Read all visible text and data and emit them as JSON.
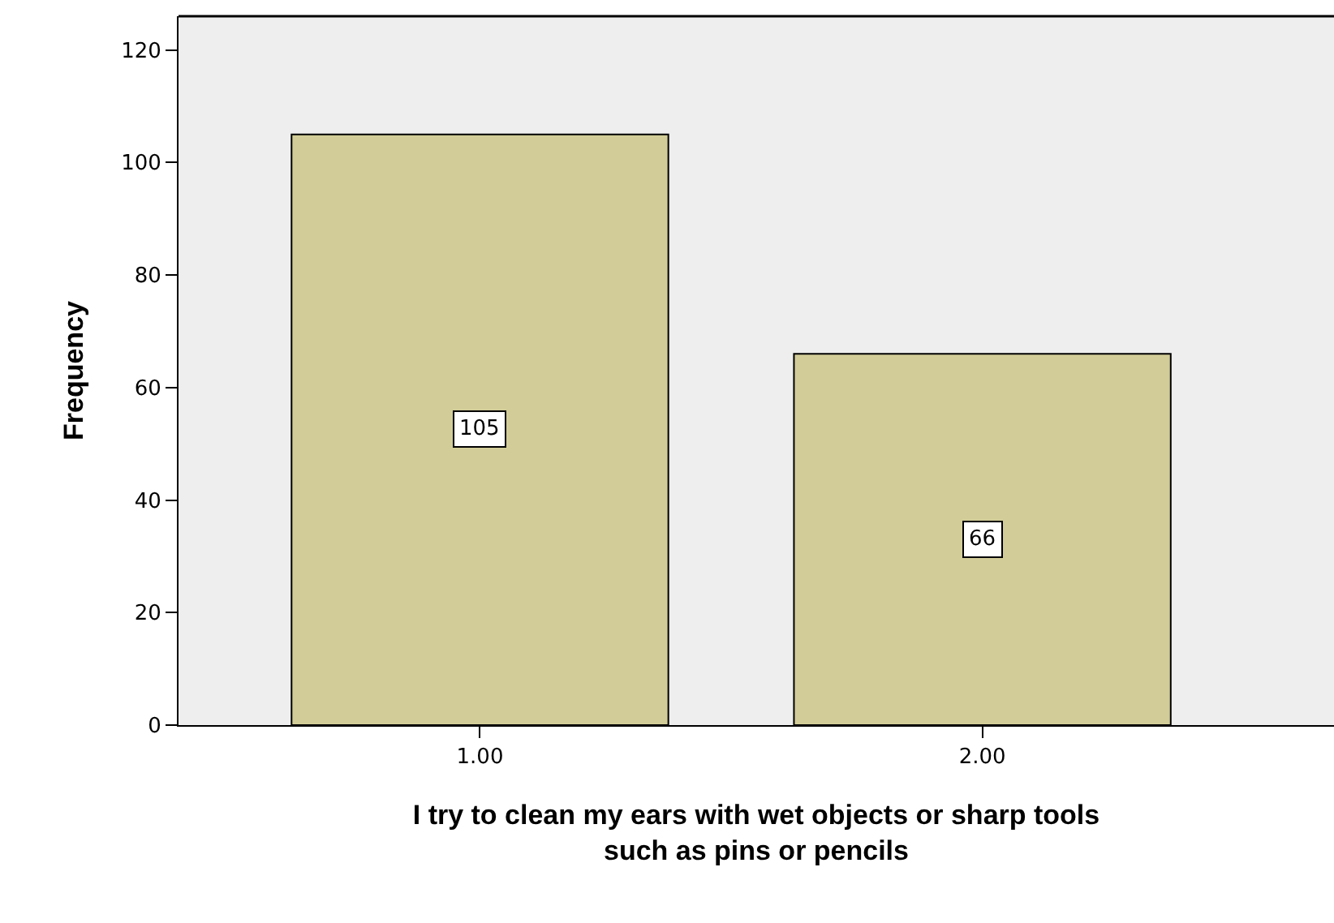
{
  "chart_data": {
    "type": "bar",
    "xlabel": "I try to clean my ears with wet objects or sharp tools such as pins or pencils",
    "ylabel": "Frequency",
    "categories": [
      "1.00",
      "2.00"
    ],
    "values": [
      105,
      66
    ],
    "color": "#d2cd98",
    "ylim": [
      0,
      126
    ],
    "yticks": [
      0,
      20,
      40,
      60,
      80,
      100,
      120
    ],
    "data_labels": true,
    "grid": false
  }
}
